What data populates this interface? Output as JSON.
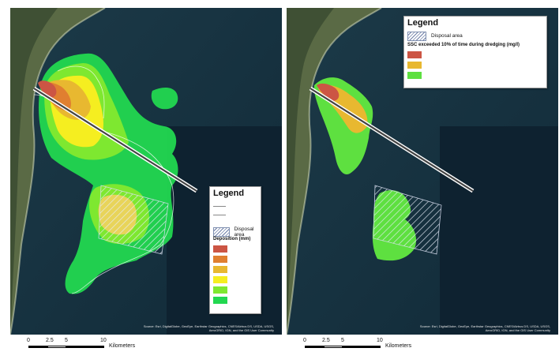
{
  "left_map": {
    "legend": {
      "title": "Legend",
      "disposal_label": "Disposal area",
      "deposition_heading": "Deposition (mm)",
      "swatch_colors": [
        "#cc5544",
        "#e07f30",
        "#e8b830",
        "#f5ee20",
        "#7ee830",
        "#22d850"
      ]
    },
    "attribution": "Source: Esri, DigitalGlobe, GeoEye, Earthstar Geographics, CNES/Airbus DS, USDA, USGS, AeroGRID, IGN, and the GIS User Community"
  },
  "right_map": {
    "legend": {
      "title": "Legend",
      "disposal_label": "Disposal area",
      "ssc_heading": "SSC exceeded 10% of time during dredging (mg/l)",
      "swatch_colors": [
        "#cc5544",
        "#e8b830",
        "#5ee040"
      ]
    },
    "attribution": "Source: Esri, DigitalGlobe, GeoEye, Earthstar Geographics, CNES/Airbus DS, USDA, USGS, AeroGRID, IGN, and the GIS User Community"
  },
  "scale_bar": {
    "ticks": [
      "0",
      "2.5",
      "5",
      "10"
    ],
    "unit": "Kilometers"
  }
}
